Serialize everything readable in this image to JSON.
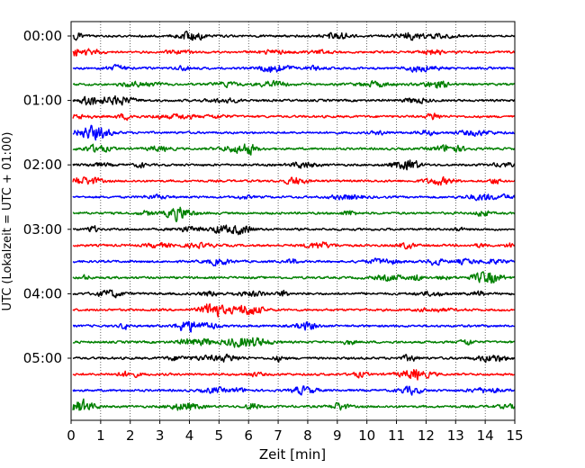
{
  "chart_data": {
    "type": "line",
    "title": "",
    "xlabel": "Zeit  [min]",
    "ylabel": "UTC (Lokalzeit = UTC + 01:00)",
    "xlim": [
      0,
      15
    ],
    "x_ticks": [
      0,
      1,
      2,
      3,
      4,
      5,
      6,
      7,
      8,
      9,
      10,
      11,
      12,
      13,
      14,
      15
    ],
    "y_tick_labels": [
      "00:00",
      "01:00",
      "02:00",
      "03:00",
      "04:00",
      "05:00"
    ],
    "y_tick_rows": [
      0,
      4,
      8,
      12,
      16,
      20
    ],
    "row_minutes": 15,
    "row_count": 24,
    "grid": "vertical dotted at each minute",
    "color_cycle": [
      "#000000",
      "#ff0000",
      "#0000ff",
      "#008000"
    ]
  }
}
